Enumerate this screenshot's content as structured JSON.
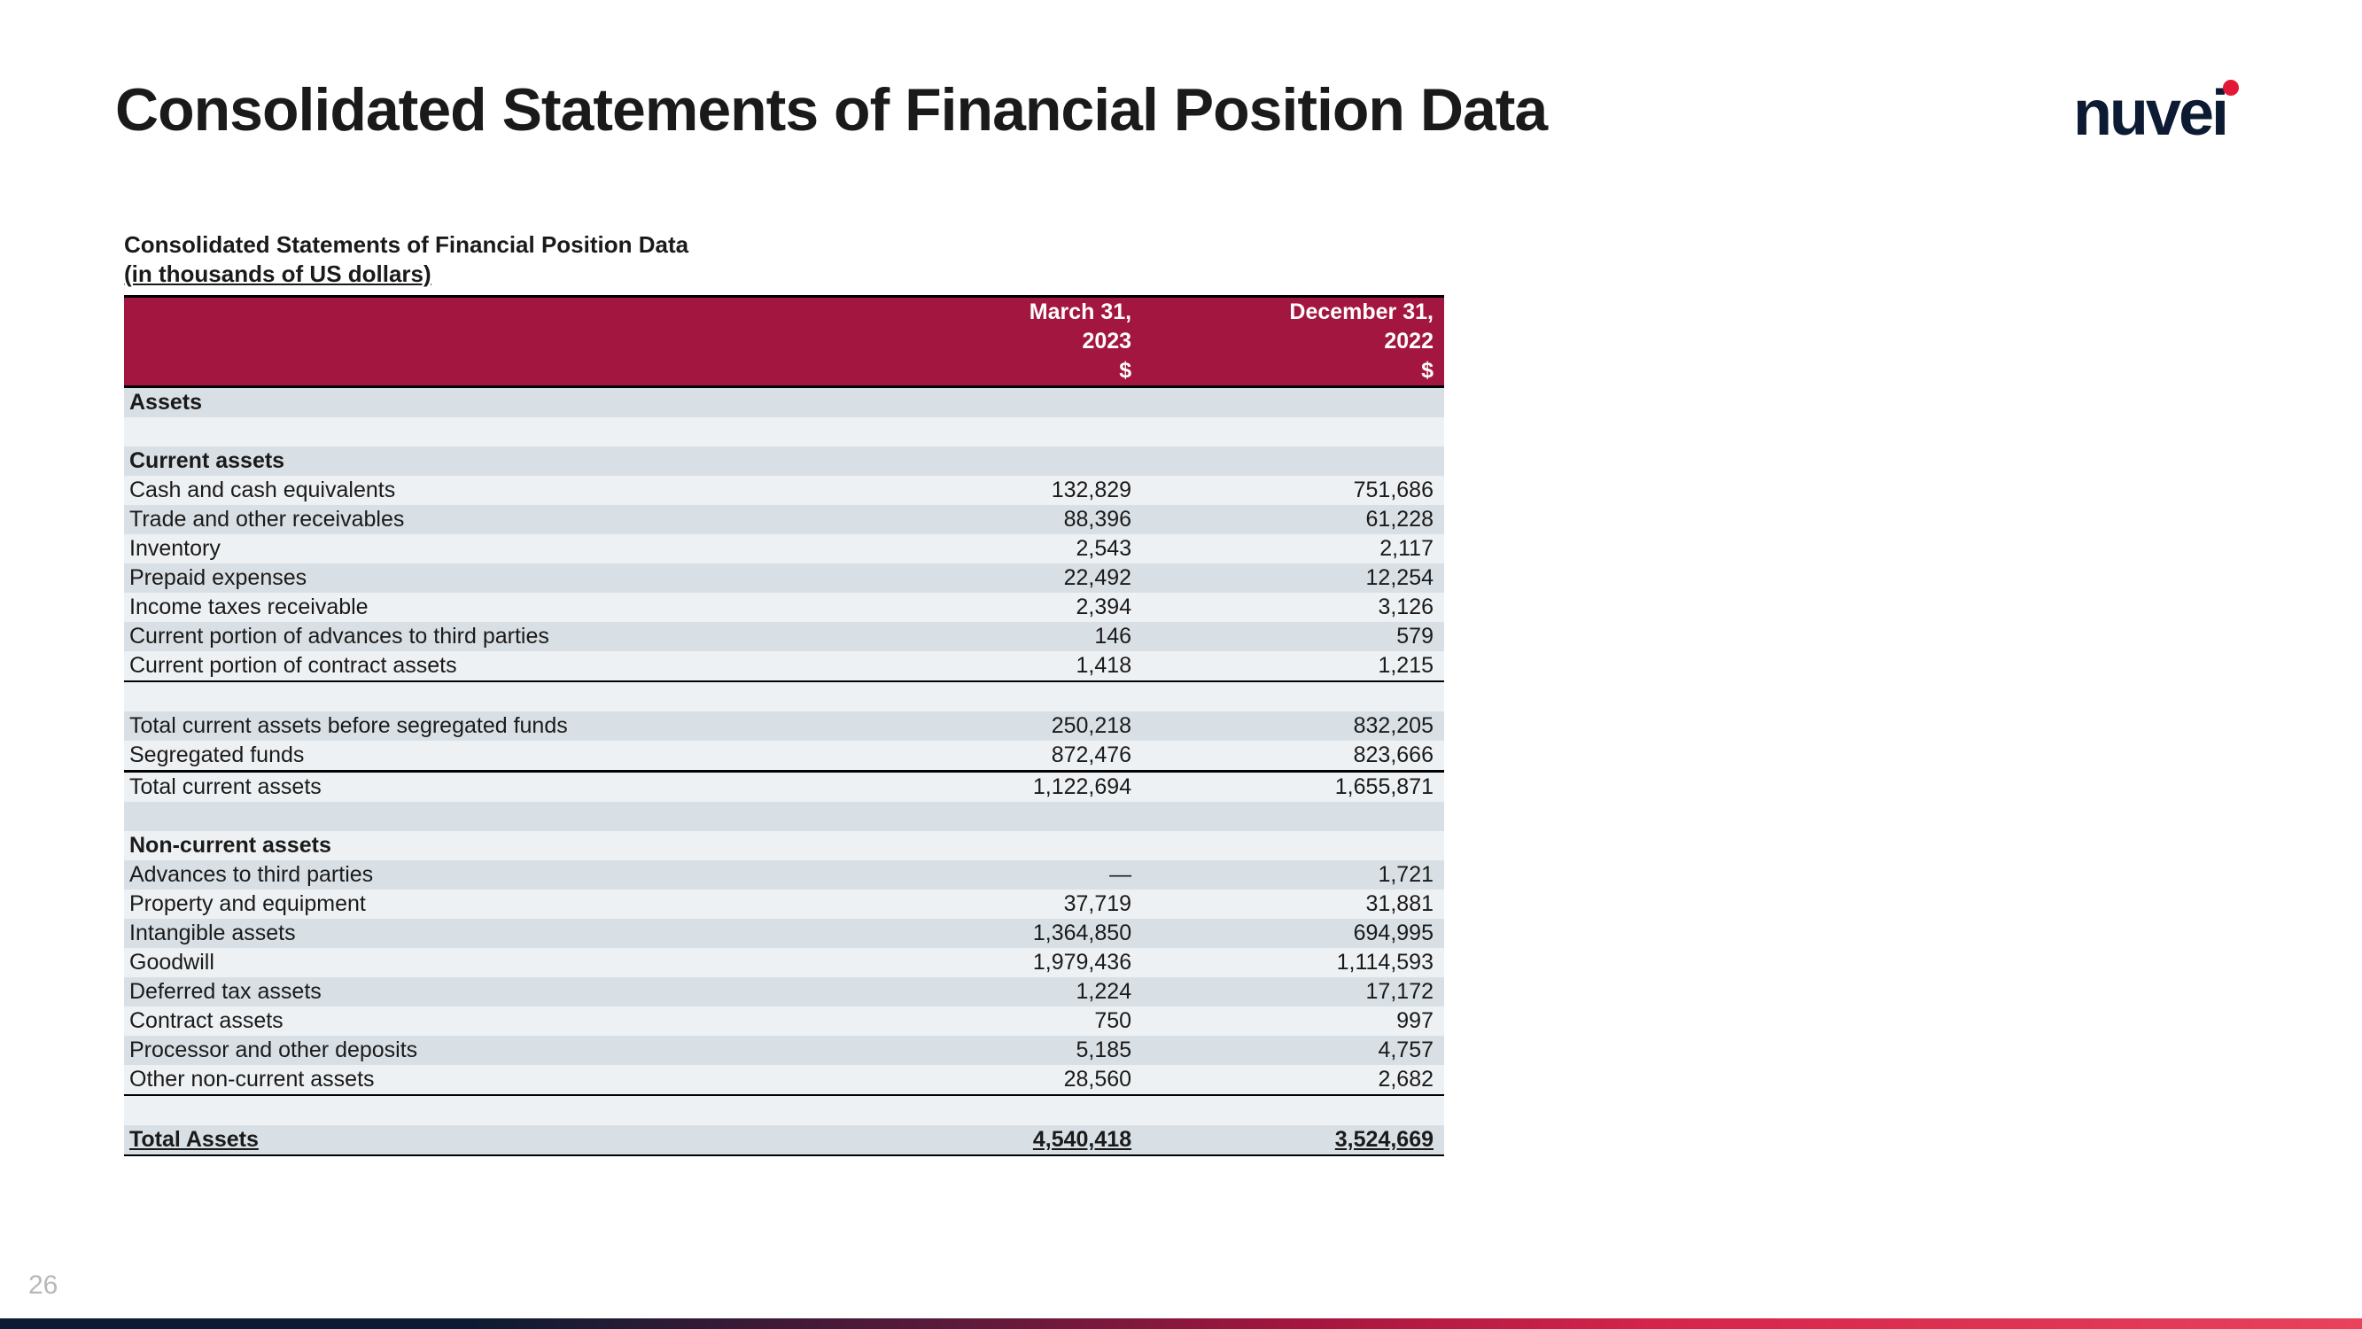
{
  "page_number": "26",
  "title": "Consolidated Statements of Financial Position Data",
  "logo_text": "nuvei",
  "subtitle_line1": "Consolidated Statements of Financial Position Data",
  "subtitle_line2": "(in thousands of US dollars)",
  "header": {
    "col2_line1": "March 31,",
    "col2_line2": "2023",
    "col2_line3": "$",
    "col3_line1": "December 31,",
    "col3_line2": "2022",
    "col3_line3": "$"
  },
  "colors": {
    "brand_red": "#a3163f",
    "brand_navy": "#0c1b33",
    "stripe_a": "#d9e0e5",
    "stripe_b": "#eef1f3",
    "logo_dot": "#e31837",
    "page_num": "#b8b8b8",
    "gradient": [
      "#0c1b33",
      "#5a1a3a",
      "#a3163f",
      "#d4244a",
      "#e8425c"
    ]
  },
  "sections": {
    "assets_label": "Assets",
    "current_assets_label": "Current assets",
    "noncurrent_assets_label": "Non-current assets",
    "total_assets_label": "Total Assets"
  },
  "rows": {
    "cash": {
      "label": "Cash and cash equivalents",
      "v1": "132,829",
      "v2": "751,686"
    },
    "trade_recv": {
      "label": "Trade and other receivables",
      "v1": "88,396",
      "v2": "61,228"
    },
    "inventory": {
      "label": "Inventory",
      "v1": "2,543",
      "v2": "2,117"
    },
    "prepaid": {
      "label": "Prepaid expenses",
      "v1": "22,492",
      "v2": "12,254"
    },
    "income_tax_recv": {
      "label": "Income taxes receivable",
      "v1": "2,394",
      "v2": "3,126"
    },
    "adv_current": {
      "label": "Current portion of advances to third parties",
      "v1": "146",
      "v2": "579"
    },
    "contract_current": {
      "label": "Current portion of contract assets",
      "v1": "1,418",
      "v2": "1,215"
    },
    "total_cur_before": {
      "label": "Total current assets before segregated funds",
      "v1": "250,218",
      "v2": "832,205"
    },
    "segregated": {
      "label": "Segregated funds",
      "v1": "872,476",
      "v2": "823,666"
    },
    "total_current": {
      "label": "Total current assets",
      "v1": "1,122,694",
      "v2": "1,655,871"
    },
    "adv_third": {
      "label": "Advances to third parties",
      "v1": "—",
      "v2": "1,721"
    },
    "ppe": {
      "label": "Property and equipment",
      "v1": "37,719",
      "v2": "31,881"
    },
    "intangible": {
      "label": "Intangible assets",
      "v1": "1,364,850",
      "v2": "694,995"
    },
    "goodwill": {
      "label": "Goodwill",
      "v1": "1,979,436",
      "v2": "1,114,593"
    },
    "dta": {
      "label": "Deferred tax assets",
      "v1": "1,224",
      "v2": "17,172"
    },
    "contract_assets": {
      "label": "Contract assets",
      "v1": "750",
      "v2": "997"
    },
    "processor_dep": {
      "label": "Processor and other deposits",
      "v1": "5,185",
      "v2": "4,757"
    },
    "other_noncurrent": {
      "label": "Other non-current assets",
      "v1": "28,560",
      "v2": "2,682"
    },
    "total_assets": {
      "v1": "4,540,418",
      "v2": "3,524,669"
    }
  }
}
